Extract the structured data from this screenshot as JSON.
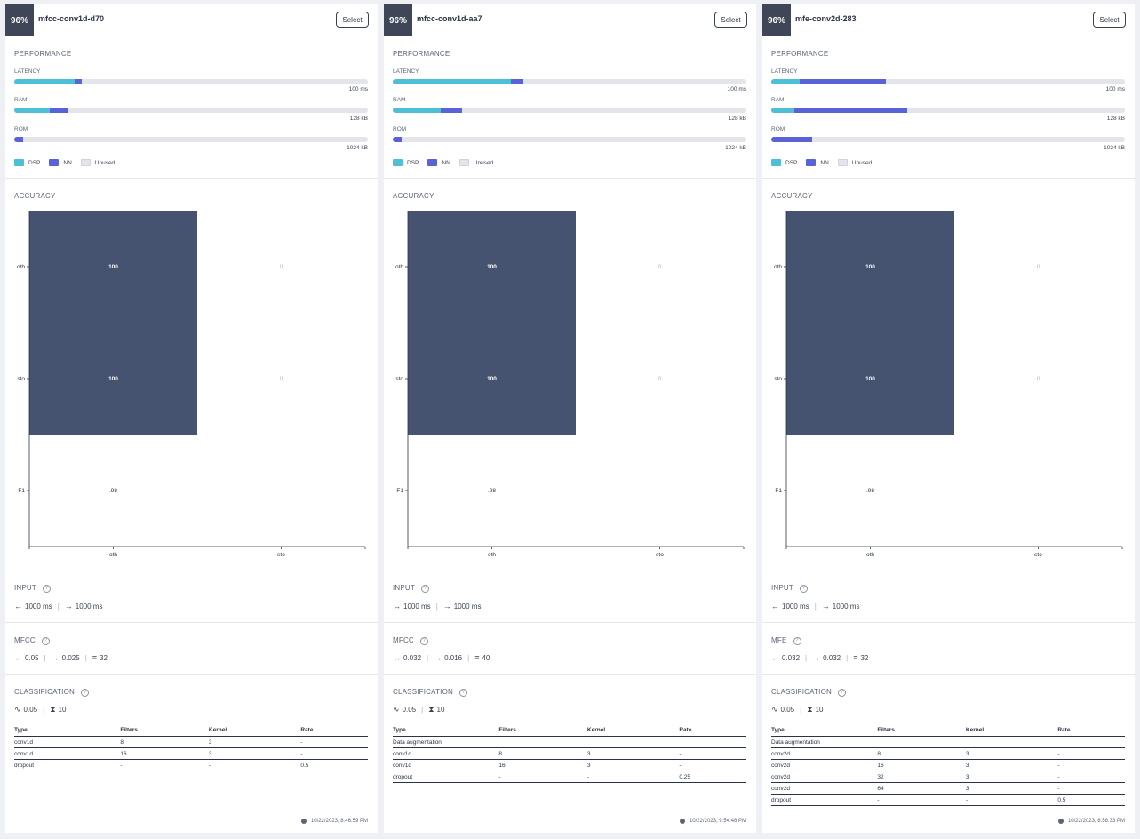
{
  "legend": {
    "dsp": "DSP",
    "nn": "NN",
    "unused": "Unused"
  },
  "labels": {
    "performance": "PERFORMANCE",
    "latency": "LATENCY",
    "ram": "RAM",
    "rom": "ROM",
    "accuracy": "ACCURACY",
    "input": "INPUT",
    "classification": "CLASSIFICATION",
    "select": "Select",
    "col_type": "Type",
    "col_filters": "Filters",
    "col_kernel": "Kernel",
    "col_rate": "Rate"
  },
  "colors": {
    "dsp": "#4ec0d6",
    "nn": "#5a62d8",
    "unused": "#e3e5ea",
    "cell_dark": "#465370"
  },
  "cards": [
    {
      "score": "96%",
      "title": "mfcc-conv1d-d70",
      "latency": {
        "value": "100 ms",
        "dsp": 0.17,
        "nn": 0.02
      },
      "ram": {
        "value": "128 kB",
        "dsp": 0.1,
        "nn": 0.05
      },
      "rom": {
        "value": "1024 kB",
        "dsp": 0.0,
        "nn": 0.025
      },
      "chart_data": {
        "type": "heatmap",
        "rows": [
          "oth",
          "sto",
          "F1"
        ],
        "columns": [
          "oth",
          "sto"
        ],
        "cells": [
          [
            "100",
            "0"
          ],
          [
            "100",
            "0"
          ],
          [
            ".98",
            ""
          ]
        ]
      },
      "input": {
        "window": "1000 ms",
        "stride": "1000 ms"
      },
      "dsp_block": {
        "name": "MFCC",
        "frame": "0.05",
        "stride": "0.025",
        "coeffs": "32"
      },
      "classification": {
        "lr": "0.05",
        "cycles": "10"
      },
      "layers": [
        [
          "conv1d",
          "8",
          "3",
          "-"
        ],
        [
          "conv1d",
          "16",
          "3",
          "-"
        ],
        [
          "dropout",
          "-",
          "-",
          "0.5"
        ]
      ],
      "timestamp": "10/22/2023, 8:46:59 PM"
    },
    {
      "score": "96%",
      "title": "mfcc-conv1d-aa7",
      "latency": {
        "value": "100 ms",
        "dsp": 0.335,
        "nn": 0.035
      },
      "ram": {
        "value": "128 kB",
        "dsp": 0.135,
        "nn": 0.06
      },
      "rom": {
        "value": "1024 kB",
        "dsp": 0.0,
        "nn": 0.025
      },
      "chart_data": {
        "type": "heatmap",
        "rows": [
          "oth",
          "sto",
          "F1"
        ],
        "columns": [
          "oth",
          "sto"
        ],
        "cells": [
          [
            "100",
            "0"
          ],
          [
            "100",
            "0"
          ],
          [
            ".98",
            ""
          ]
        ]
      },
      "input": {
        "window": "1000 ms",
        "stride": "1000 ms"
      },
      "dsp_block": {
        "name": "MFCC",
        "frame": "0.032",
        "stride": "0.016",
        "coeffs": "40"
      },
      "classification": {
        "lr": "0.05",
        "cycles": "10"
      },
      "layers": [
        [
          "Data augmentation",
          "",
          "",
          ""
        ],
        [
          "conv1d",
          "8",
          "3",
          "-"
        ],
        [
          "conv1d",
          "16",
          "3",
          "-"
        ],
        [
          "dropout",
          "-",
          "-",
          "0.25"
        ]
      ],
      "timestamp": "10/22/2023, 9:54:48 PM"
    },
    {
      "score": "96%",
      "title": "mfe-conv2d-283",
      "latency": {
        "value": "100 ms",
        "dsp": 0.08,
        "nn": 0.245
      },
      "ram": {
        "value": "128 kB",
        "dsp": 0.065,
        "nn": 0.32
      },
      "rom": {
        "value": "1024 kB",
        "dsp": 0.0,
        "nn": 0.115
      },
      "chart_data": {
        "type": "heatmap",
        "rows": [
          "oth",
          "sto",
          "F1"
        ],
        "columns": [
          "oth",
          "sto"
        ],
        "cells": [
          [
            "100",
            "0"
          ],
          [
            "100",
            "0"
          ],
          [
            ".98",
            ""
          ]
        ]
      },
      "input": {
        "window": "1000 ms",
        "stride": "1000 ms"
      },
      "dsp_block": {
        "name": "MFE",
        "frame": "0.032",
        "stride": "0.032",
        "coeffs": "32"
      },
      "classification": {
        "lr": "0.05",
        "cycles": "10"
      },
      "layers": [
        [
          "Data augmentation",
          "",
          "",
          ""
        ],
        [
          "conv2d",
          "8",
          "3",
          "-"
        ],
        [
          "conv2d",
          "16",
          "3",
          "-"
        ],
        [
          "conv2d",
          "32",
          "3",
          "-"
        ],
        [
          "conv2d",
          "64",
          "3",
          "-"
        ],
        [
          "dropout",
          "-",
          "-",
          "0.5"
        ]
      ],
      "timestamp": "10/22/2023, 8:58:33 PM"
    }
  ]
}
